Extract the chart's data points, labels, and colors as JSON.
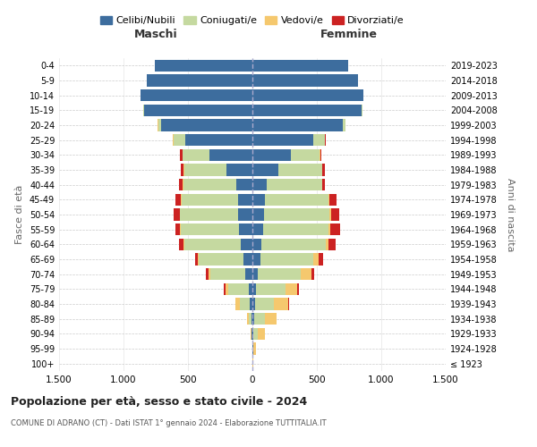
{
  "age_groups": [
    "100+",
    "95-99",
    "90-94",
    "85-89",
    "80-84",
    "75-79",
    "70-74",
    "65-69",
    "60-64",
    "55-59",
    "50-54",
    "45-49",
    "40-44",
    "35-39",
    "30-34",
    "25-29",
    "20-24",
    "15-19",
    "10-14",
    "5-9",
    "0-4"
  ],
  "birth_years": [
    "≤ 1923",
    "1924-1928",
    "1929-1933",
    "1934-1938",
    "1939-1943",
    "1944-1948",
    "1949-1953",
    "1954-1958",
    "1959-1963",
    "1964-1968",
    "1969-1973",
    "1974-1978",
    "1979-1983",
    "1984-1988",
    "1989-1993",
    "1994-1998",
    "1999-2003",
    "2004-2008",
    "2009-2013",
    "2014-2018",
    "2019-2023"
  ],
  "colors": {
    "celibi": "#3d6d9e",
    "coniugati": "#c5d9a0",
    "vedovi": "#f5c86e",
    "divorziati": "#cc2222"
  },
  "maschi": {
    "celibi": [
      2,
      3,
      5,
      10,
      20,
      30,
      55,
      70,
      90,
      105,
      110,
      110,
      125,
      200,
      330,
      520,
      710,
      840,
      870,
      820,
      760
    ],
    "coniugati": [
      0,
      0,
      5,
      20,
      80,
      160,
      270,
      350,
      440,
      450,
      450,
      440,
      410,
      330,
      210,
      90,
      20,
      5,
      0,
      0,
      0
    ],
    "vedovi": [
      0,
      0,
      5,
      15,
      30,
      20,
      15,
      5,
      5,
      5,
      5,
      5,
      5,
      5,
      5,
      5,
      5,
      0,
      0,
      0,
      0
    ],
    "divorziati": [
      0,
      0,
      0,
      0,
      0,
      10,
      20,
      20,
      35,
      40,
      45,
      45,
      30,
      20,
      15,
      5,
      0,
      0,
      0,
      0,
      0
    ]
  },
  "femmine": {
    "celibi": [
      2,
      5,
      10,
      15,
      20,
      30,
      45,
      60,
      70,
      80,
      90,
      100,
      110,
      200,
      300,
      470,
      700,
      850,
      860,
      820,
      740
    ],
    "coniugati": [
      0,
      5,
      30,
      80,
      150,
      230,
      330,
      410,
      500,
      510,
      510,
      490,
      430,
      340,
      220,
      90,
      20,
      5,
      0,
      0,
      0
    ],
    "vedovi": [
      2,
      20,
      60,
      90,
      110,
      90,
      80,
      45,
      20,
      15,
      10,
      10,
      5,
      5,
      5,
      5,
      5,
      0,
      0,
      0,
      0
    ],
    "divorziati": [
      0,
      0,
      0,
      0,
      5,
      10,
      25,
      35,
      55,
      75,
      65,
      50,
      20,
      20,
      10,
      5,
      0,
      0,
      0,
      0,
      0
    ]
  },
  "title": "Popolazione per età, sesso e stato civile - 2024",
  "subtitle": "COMUNE DI ADRANO (CT) - Dati ISTAT 1° gennaio 2024 - Elaborazione TUTTITALIA.IT",
  "xlabel_left": "Maschi",
  "xlabel_right": "Femmine",
  "ylabel_left": "Fasce di età",
  "ylabel_right": "Anni di nascita",
  "xlim": 1500,
  "legend_labels": [
    "Celibi/Nubili",
    "Coniugati/e",
    "Vedovi/e",
    "Divorziati/e"
  ],
  "bg_color": "#ffffff",
  "grid_color": "#cccccc"
}
